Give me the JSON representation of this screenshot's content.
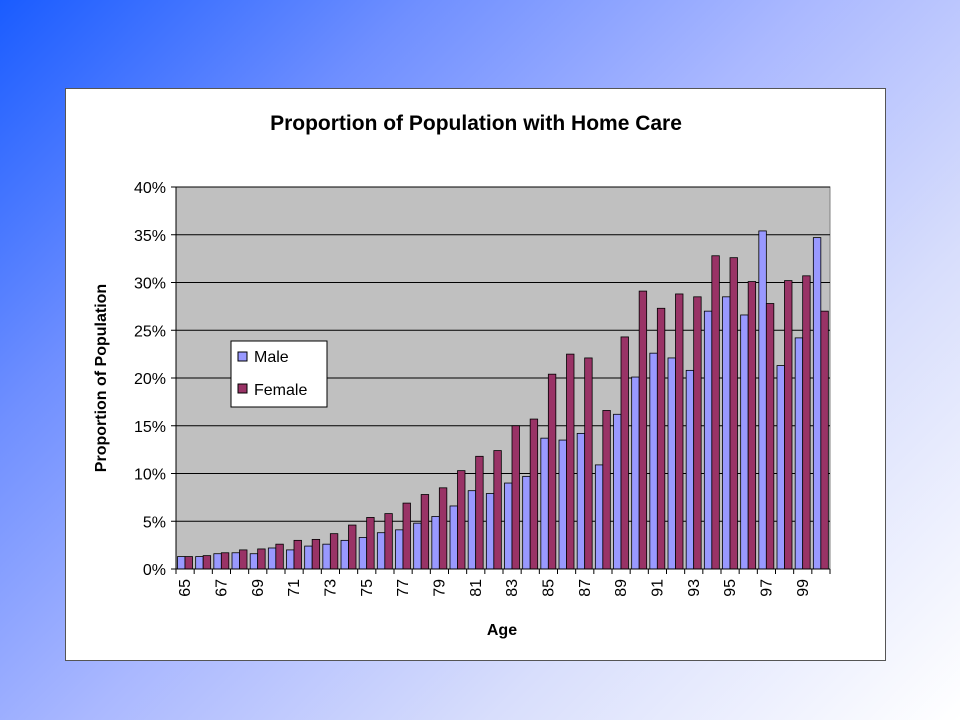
{
  "chart_data": {
    "type": "bar",
    "title": "Proportion of Population with Home Care",
    "xlabel": "Age",
    "ylabel": "Proportion of Population",
    "ylim": [
      0,
      0.4
    ],
    "yticks": [
      "0%",
      "5%",
      "10%",
      "15%",
      "20%",
      "25%",
      "30%",
      "35%",
      "40%"
    ],
    "categories": [
      "65",
      "66",
      "67",
      "68",
      "69",
      "70",
      "71",
      "72",
      "73",
      "74",
      "75",
      "76",
      "77",
      "78",
      "79",
      "80",
      "81",
      "82",
      "83",
      "84",
      "85",
      "86",
      "87",
      "88",
      "89",
      "90",
      "91",
      "92",
      "93",
      "94",
      "95",
      "96",
      "97",
      "98",
      "99",
      "100"
    ],
    "category_labels_shown": [
      "65",
      "67",
      "69",
      "71",
      "73",
      "75",
      "77",
      "79",
      "81",
      "83",
      "85",
      "87",
      "89",
      "91",
      "93",
      "95",
      "97",
      "99"
    ],
    "series": [
      {
        "name": "Male",
        "color": "#9999ff",
        "values": [
          0.013,
          0.013,
          0.016,
          0.017,
          0.016,
          0.022,
          0.02,
          0.024,
          0.026,
          0.03,
          0.033,
          0.038,
          0.041,
          0.048,
          0.055,
          0.066,
          0.082,
          0.079,
          0.09,
          0.097,
          0.137,
          0.135,
          0.142,
          0.109,
          0.162,
          0.201,
          0.226,
          0.221,
          0.208,
          0.27,
          0.285,
          0.266,
          0.354,
          0.213,
          0.242,
          0.347
        ]
      },
      {
        "name": "Female",
        "color": "#993366",
        "values": [
          0.013,
          0.014,
          0.017,
          0.02,
          0.021,
          0.026,
          0.03,
          0.031,
          0.037,
          0.046,
          0.054,
          0.058,
          0.069,
          0.078,
          0.085,
          0.103,
          0.118,
          0.124,
          0.15,
          0.157,
          0.204,
          0.225,
          0.221,
          0.166,
          0.243,
          0.291,
          0.273,
          0.288,
          0.285,
          0.328,
          0.326,
          0.301,
          0.278,
          0.302,
          0.307,
          0.27
        ]
      }
    ],
    "grid": true,
    "legend_position": "left-middle",
    "plot_background": "#c0c0c0"
  }
}
